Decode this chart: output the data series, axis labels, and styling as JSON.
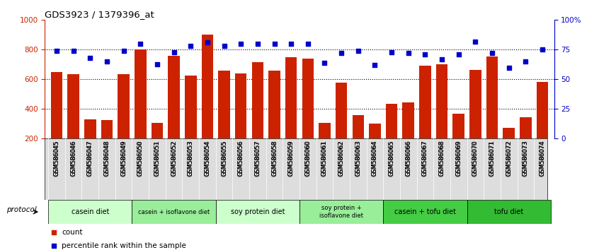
{
  "title": "GDS3923 / 1379396_at",
  "samples": [
    "GSM586045",
    "GSM586046",
    "GSM586047",
    "GSM586048",
    "GSM586049",
    "GSM586050",
    "GSM586051",
    "GSM586052",
    "GSM586053",
    "GSM586054",
    "GSM586055",
    "GSM586056",
    "GSM586057",
    "GSM586058",
    "GSM586059",
    "GSM586060",
    "GSM586061",
    "GSM586062",
    "GSM586063",
    "GSM586064",
    "GSM586065",
    "GSM586066",
    "GSM586067",
    "GSM586068",
    "GSM586069",
    "GSM586070",
    "GSM586071",
    "GSM586072",
    "GSM586073",
    "GSM586074"
  ],
  "bar_values": [
    650,
    635,
    330,
    325,
    635,
    800,
    305,
    760,
    625,
    900,
    660,
    640,
    715,
    660,
    750,
    740,
    305,
    580,
    360,
    300,
    435,
    445,
    690,
    700,
    370,
    665,
    755,
    275,
    345,
    585
  ],
  "dot_values": [
    74,
    74,
    68,
    65,
    74,
    80,
    63,
    73,
    78,
    81,
    78,
    80,
    80,
    80,
    80,
    80,
    64,
    72,
    74,
    62,
    73,
    72,
    71,
    67,
    71,
    82,
    72,
    60,
    65,
    75
  ],
  "groups": [
    {
      "label": "casein diet",
      "start": 0,
      "end": 4,
      "color": "#ccffcc"
    },
    {
      "label": "casein + isoflavone diet",
      "start": 5,
      "end": 9,
      "color": "#99ee99"
    },
    {
      "label": "soy protein diet",
      "start": 10,
      "end": 14,
      "color": "#ccffcc"
    },
    {
      "label": "soy protein +\nisoflavone diet",
      "start": 15,
      "end": 19,
      "color": "#99ee99"
    },
    {
      "label": "casein + tofu diet",
      "start": 20,
      "end": 24,
      "color": "#44cc44"
    },
    {
      "label": "tofu diet",
      "start": 25,
      "end": 29,
      "color": "#33bb33"
    }
  ],
  "bar_color": "#cc2200",
  "dot_color": "#0000cc",
  "ylim_left": [
    200,
    1000
  ],
  "ylim_right": [
    0,
    100
  ],
  "yticks_left": [
    200,
    400,
    600,
    800,
    1000
  ],
  "yticks_right": [
    0,
    25,
    50,
    75,
    100
  ],
  "ytick_labels_left": [
    "200",
    "400",
    "600",
    "800",
    "1000"
  ],
  "ytick_labels_right": [
    "0",
    "25",
    "50",
    "75",
    "100%"
  ],
  "hlines": [
    400,
    600,
    800
  ],
  "legend_items": [
    {
      "label": "count",
      "color": "#cc2200"
    },
    {
      "label": "percentile rank within the sample",
      "color": "#0000cc"
    }
  ],
  "protocol_label": "protocol"
}
